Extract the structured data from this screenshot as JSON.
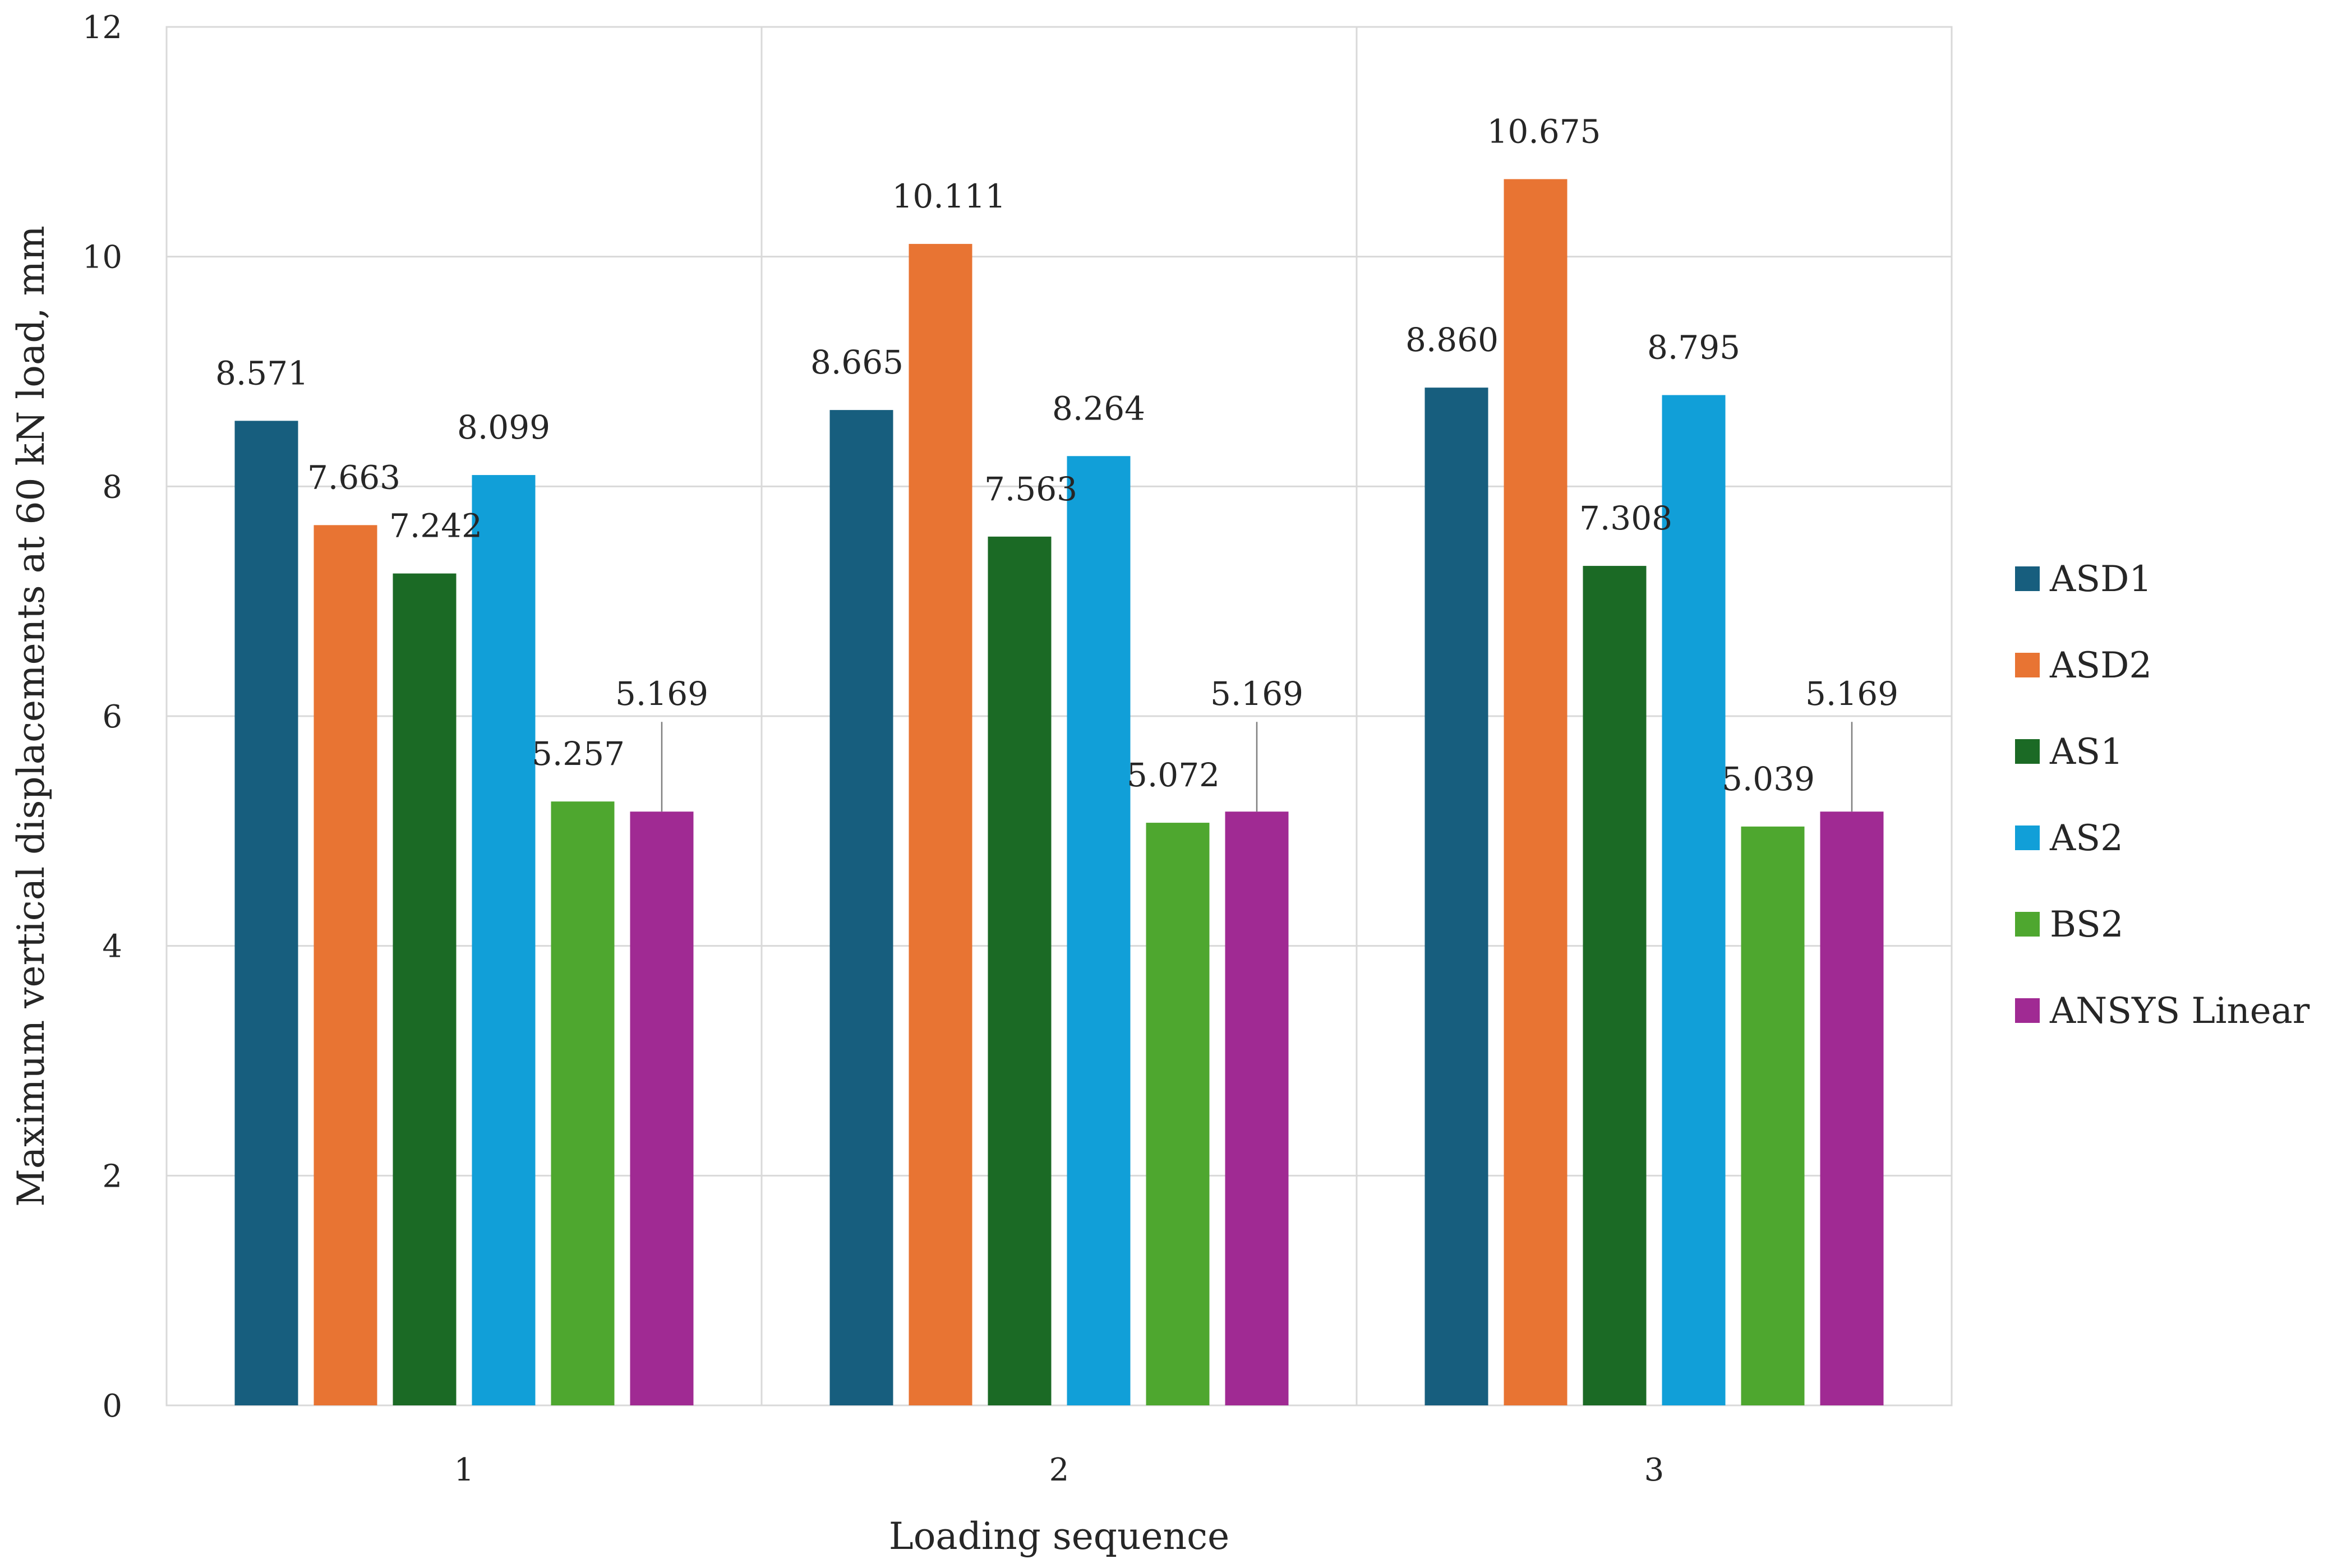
{
  "chart_data": {
    "type": "bar",
    "title": "",
    "xlabel": "Loading sequence",
    "ylabel": "Maximum vertical displacements at 60 kN load, mm",
    "categories": [
      "1",
      "2",
      "3"
    ],
    "ylim": [
      0,
      12
    ],
    "yticks": [
      "0",
      "2",
      "4",
      "6",
      "8",
      "10",
      "12"
    ],
    "grid": true,
    "legend_position": "right",
    "series": [
      {
        "name": "ASD1",
        "color": "#175e7e",
        "values": [
          8.571,
          8.665,
          8.86
        ],
        "labels": [
          "8.571",
          "8.665",
          "8.860"
        ]
      },
      {
        "name": "ASD2",
        "color": "#e87433",
        "values": [
          7.663,
          10.111,
          10.675
        ],
        "labels": [
          "7.663",
          "10.111",
          "10.675"
        ]
      },
      {
        "name": "AS1",
        "color": "#1b6a25",
        "values": [
          7.242,
          7.563,
          7.308
        ],
        "labels": [
          "7.242",
          "7.563",
          "7.308"
        ]
      },
      {
        "name": "AS2",
        "color": "#119fd8",
        "values": [
          8.099,
          8.264,
          8.795
        ],
        "labels": [
          "8.099",
          "8.264",
          "8.795"
        ]
      },
      {
        "name": "BS2",
        "color": "#4ea72f",
        "values": [
          5.257,
          5.072,
          5.039
        ],
        "labels": [
          "5.257",
          "5.072",
          "5.039"
        ]
      },
      {
        "name": "ANSYS Linear",
        "color": "#a02a93",
        "values": [
          5.169,
          5.169,
          5.169
        ],
        "labels": [
          "5.169",
          "5.169",
          "5.169"
        ]
      }
    ]
  }
}
